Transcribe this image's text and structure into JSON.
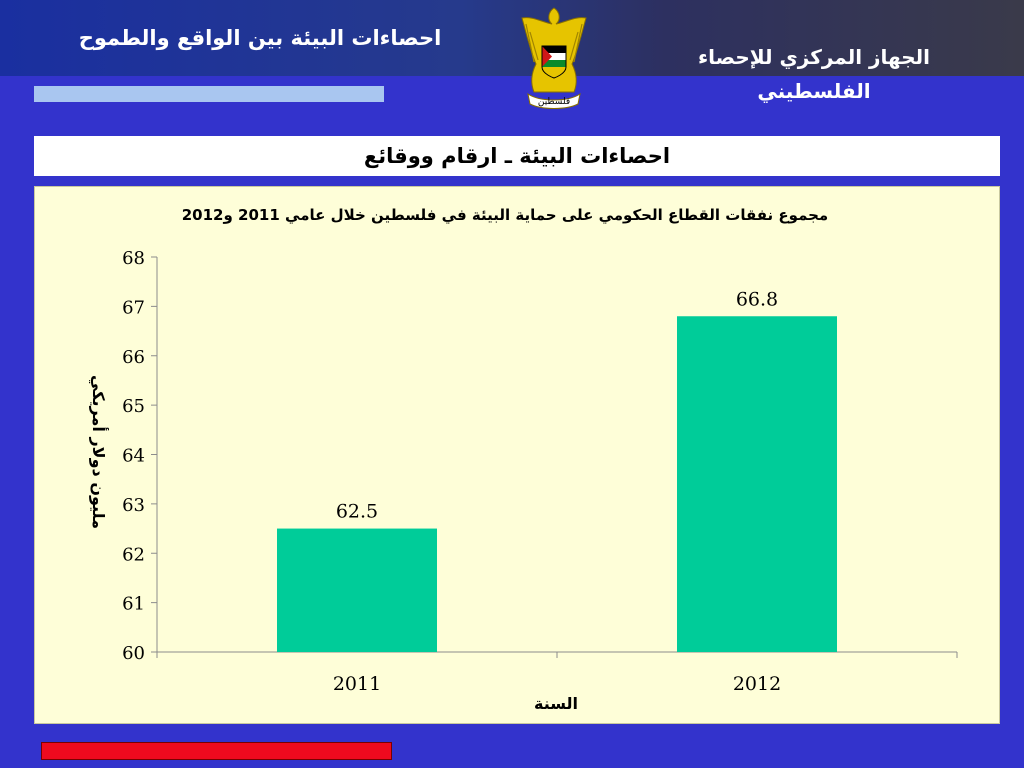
{
  "header": {
    "org_name": "الجهاز المركزي للإحصاء الفلسطيني",
    "slide_series": "احصاءات البيئة بين الواقع والطموح",
    "emblem_text": "فلسطين"
  },
  "section_title": "احصاءات البيئة  ـ ارقام ووقائع",
  "colors": {
    "background": "#3333cc",
    "bar": "#00cc99",
    "panel": "#fefed8",
    "accent_bar": "#ee0a1e"
  },
  "chart_data": {
    "type": "bar",
    "title": "مجموع نفقات القطاع الحكومي على حماية البيئة في فلسطين خلال عامي 2011 و2012",
    "categories": [
      "2011",
      "2012"
    ],
    "values": [
      62.5,
      66.8
    ],
    "data_labels": [
      "62.5",
      "66.8"
    ],
    "xlabel": "السنة",
    "ylabel": "مليون دولار أمريكي",
    "ylim": [
      60,
      68
    ],
    "yticks": [
      "60",
      "61",
      "62",
      "63",
      "64",
      "65",
      "66",
      "67",
      "68"
    ],
    "grid": false,
    "legend": "none"
  }
}
